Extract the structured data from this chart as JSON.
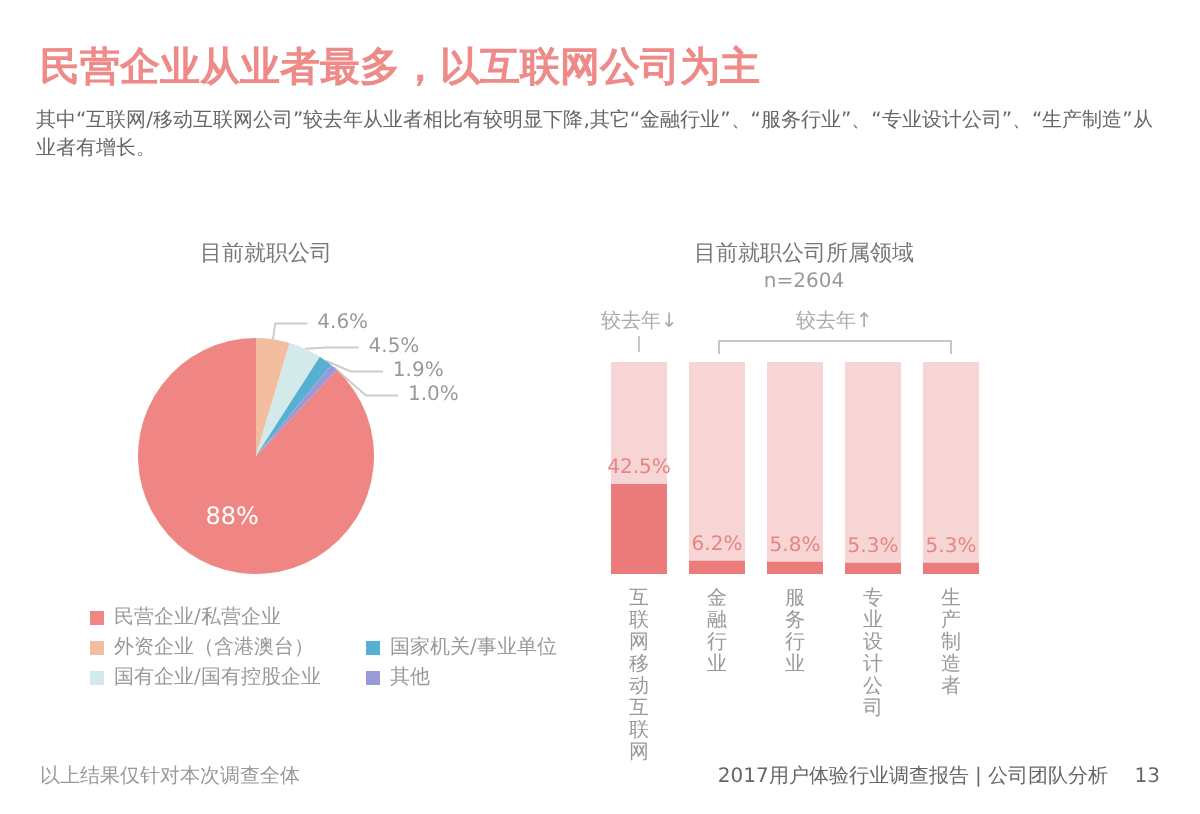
{
  "chart_data": [
    {
      "type": "pie",
      "title": "目前就职公司",
      "categories": [
        "民营企业/私营企业",
        "外资企业（含港澳台）",
        "国有企业/国有控股企业",
        "国家机关/事业单位",
        "其他"
      ],
      "values": [
        88,
        4.6,
        4.5,
        1.9,
        1.0
      ],
      "colors": [
        "#ef8684",
        "#f3bd9f",
        "#d3eaea",
        "#55b0d2",
        "#9a9ad8"
      ],
      "value_labels": [
        "88%",
        "4.6%",
        "4.5%",
        "1.9%",
        "1.0%"
      ],
      "legend": "bottom",
      "annotations": [
        "民营企业从业者最多，以互联网公司为主",
        "其中“互联网/移动互联网公司”较去年从业者相比有较明显下降,其它“金融行业”、“服务行业”、“专业设计公司”、“生产制造”从业者有增长。",
        "以上结果仅针对本次调查全体"
      ]
    },
    {
      "type": "bar",
      "title": "目前就职公司所属领域",
      "subtitle": "n=2604",
      "categories": [
        "互联网移动互联网",
        "金融行业",
        "服务行业",
        "专业设计公司",
        "生产制造者"
      ],
      "values": [
        42.5,
        6.2,
        5.8,
        5.3,
        5.3
      ],
      "color": "#ec7c7c",
      "value_labels": [
        "42.5%",
        "6.2%",
        "5.8%",
        "5.3%",
        "5.3%"
      ],
      "ylim": [
        0,
        100
      ],
      "tick_labels": "x",
      "annotations": [
        "较去年↓",
        "较去年↑",
        "2017用户体验行业调查报告 | 公司团队分析　 13"
      ]
    }
  ]
}
